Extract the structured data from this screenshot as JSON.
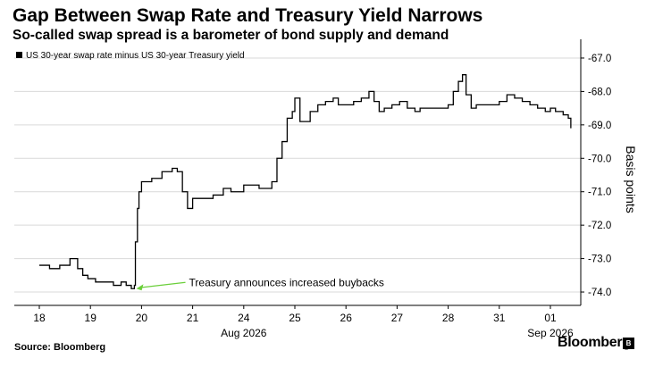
{
  "title": "Gap Between Swap Rate and Treasury Yield Narrows",
  "subtitle": "So-called swap spread is a barometer of bond supply and demand",
  "source": "Source: Bloomberg",
  "brand": "Bloomberg",
  "chart_data": {
    "type": "line",
    "title": "Gap Between Swap Rate and Treasury Yield Narrows",
    "subtitle": "So-called swap spread is a barometer of bond supply and demand",
    "ylabel": "Basis points",
    "xlabel": "",
    "ylim": [
      -74.4,
      -66.6
    ],
    "yticks": [
      -67.0,
      -68.0,
      -69.0,
      -70.0,
      -71.0,
      -72.0,
      -73.0,
      -74.0
    ],
    "ytick_labels": [
      "-67.0",
      "-68.0",
      "-69.0",
      "-70.0",
      "-71.0",
      "-72.0",
      "-73.0",
      "-74.0"
    ],
    "y_axis_side": "right",
    "grid": "horizontal",
    "legend_position": "top-left",
    "x_categories": [
      "18",
      "19",
      "20",
      "21",
      "24",
      "25",
      "26",
      "27",
      "28",
      "31",
      "01"
    ],
    "x_month_labels": [
      {
        "after_category": "24",
        "label": "Aug 2026"
      },
      {
        "after_category": "01",
        "label": "Sep 2026"
      }
    ],
    "color": "#000000",
    "series": [
      {
        "name": "US 30-year swap rate minus US 30-year Treasury yield",
        "x": [
          0.0,
          0.2,
          0.4,
          0.6,
          0.75,
          0.85,
          0.95,
          1.1,
          1.3,
          1.45,
          1.6,
          1.7,
          1.8,
          1.86,
          1.88,
          1.92,
          1.95,
          2.0,
          2.2,
          2.4,
          2.6,
          2.7,
          2.8,
          2.9,
          3.0,
          3.2,
          3.4,
          3.6,
          3.75,
          3.85,
          4.0,
          4.3,
          4.55,
          4.65,
          4.75,
          4.85,
          4.95,
          5.0,
          5.1,
          5.2,
          5.3,
          5.45,
          5.6,
          5.75,
          5.85,
          6.0,
          6.15,
          6.3,
          6.45,
          6.55,
          6.65,
          6.75,
          6.9,
          7.05,
          7.2,
          7.35,
          7.45,
          7.6,
          7.75,
          7.9,
          8.0,
          8.1,
          8.2,
          8.28,
          8.35,
          8.45,
          8.55,
          8.7,
          8.85,
          9.0,
          9.15,
          9.3,
          9.45,
          9.6,
          9.75,
          9.9,
          10.0,
          10.1,
          10.25,
          10.35,
          10.4
        ],
        "y": [
          -73.2,
          -73.3,
          -73.2,
          -73.0,
          -73.3,
          -73.5,
          -73.6,
          -73.7,
          -73.7,
          -73.8,
          -73.7,
          -73.8,
          -73.9,
          -73.8,
          -72.5,
          -71.5,
          -71.0,
          -70.7,
          -70.6,
          -70.4,
          -70.3,
          -70.4,
          -71.0,
          -71.5,
          -71.2,
          -71.2,
          -71.1,
          -70.9,
          -71.0,
          -71.0,
          -70.8,
          -70.9,
          -70.7,
          -70.0,
          -69.5,
          -68.8,
          -68.6,
          -68.2,
          -68.9,
          -68.9,
          -68.6,
          -68.4,
          -68.3,
          -68.2,
          -68.4,
          -68.4,
          -68.3,
          -68.2,
          -68.0,
          -68.3,
          -68.6,
          -68.5,
          -68.4,
          -68.3,
          -68.5,
          -68.6,
          -68.5,
          -68.5,
          -68.5,
          -68.5,
          -68.4,
          -68.0,
          -67.7,
          -67.5,
          -68.1,
          -68.5,
          -68.4,
          -68.4,
          -68.4,
          -68.3,
          -68.1,
          -68.2,
          -68.3,
          -68.4,
          -68.5,
          -68.6,
          -68.5,
          -68.6,
          -68.7,
          -68.8,
          -69.1
        ]
      }
    ],
    "annotations": [
      {
        "text": "Treasury announces increased buybacks",
        "x": 1.88,
        "y": -73.9,
        "arrow_color": "#6bcf3b"
      }
    ]
  }
}
